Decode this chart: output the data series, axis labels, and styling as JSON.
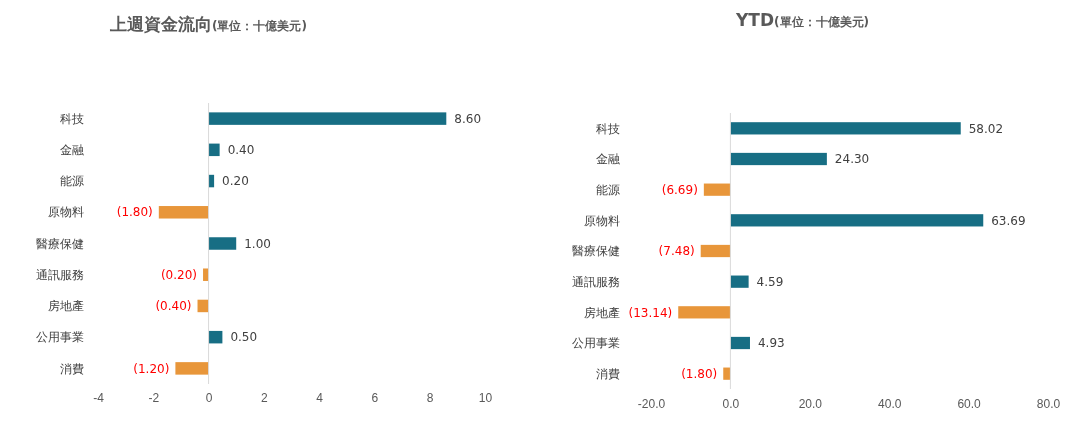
{
  "chart_data": [
    {
      "type": "bar",
      "orientation": "horizontal",
      "title": "上週資金流向",
      "subtitle": "(單位：十億美元)",
      "categories": [
        "科技",
        "金融",
        "能源",
        "原物料",
        "醫療保健",
        "通訊服務",
        "房地產",
        "公用事業",
        "消費"
      ],
      "values": [
        8.6,
        0.4,
        0.2,
        -1.8,
        1.0,
        -0.2,
        -0.4,
        0.5,
        -1.2
      ],
      "colors": [
        "#176e84",
        "#176e84",
        "#176e84",
        "#e8963a",
        "#176e84",
        "#e8963a",
        "#e8963a",
        "#176e84",
        "#e8963a"
      ],
      "value_labels": [
        "8.60",
        "0.40",
        "0.20",
        "(1.80)",
        "1.00",
        "(0.20)",
        "(0.40)",
        "0.50",
        "(1.20)"
      ],
      "xlim": [
        -4,
        10
      ],
      "xticks": [
        -4,
        -2,
        0,
        2,
        4,
        6,
        8,
        10
      ]
    },
    {
      "type": "bar",
      "orientation": "horizontal",
      "title": "YTD",
      "subtitle": "(單位：十億美元)",
      "categories": [
        "科技",
        "金融",
        "能源",
        "原物料",
        "醫療保健",
        "通訊服務",
        "房地產",
        "公用事業",
        "消費"
      ],
      "values": [
        58.02,
        24.3,
        -6.69,
        63.69,
        -7.48,
        4.59,
        -13.14,
        4.93,
        -1.8
      ],
      "colors": [
        "#176e84",
        "#176e84",
        "#e8963a",
        "#176e84",
        "#e8963a",
        "#176e84",
        "#e8963a",
        "#176e84",
        "#e8963a"
      ],
      "value_labels": [
        "58.02",
        "24.30",
        "(6.69)",
        "63.69",
        "(7.48)",
        "4.59",
        "(13.14)",
        "4.93",
        "(1.80)"
      ],
      "xlim": [
        -20,
        80
      ],
      "xticks": [
        {
          "value": -20,
          "label": "-20.0"
        },
        {
          "value": 0,
          "label": "0.0"
        },
        {
          "value": 20,
          "label": "20.0"
        },
        {
          "value": 40,
          "label": "40.0"
        },
        {
          "value": 60,
          "label": "60.0"
        },
        {
          "value": 80,
          "label": "80.0"
        }
      ]
    }
  ]
}
